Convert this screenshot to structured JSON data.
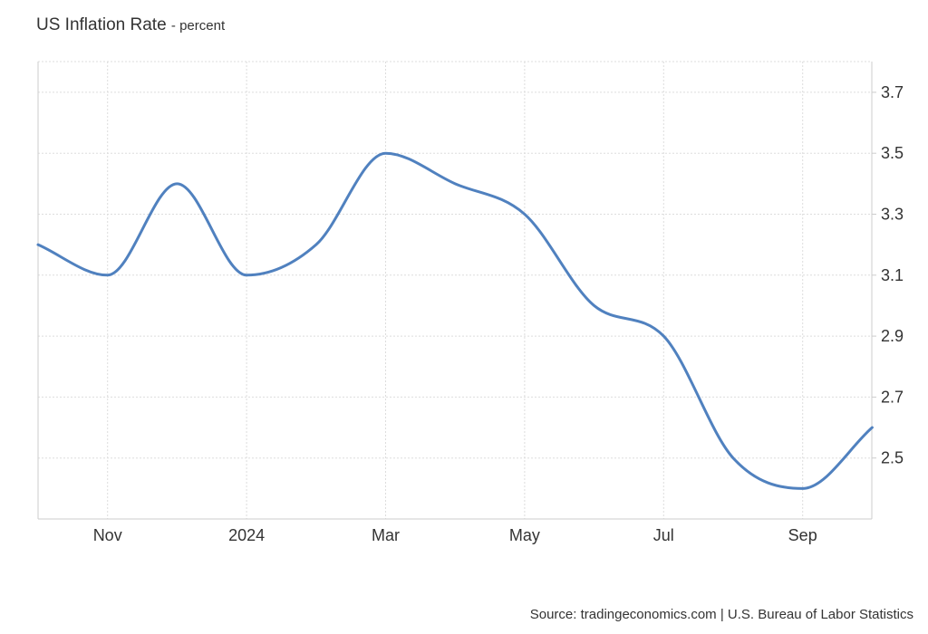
{
  "header": {
    "title": "US Inflation Rate",
    "subtitle": "- percent"
  },
  "source": "Source: tradingeconomics.com | U.S. Bureau of Labor Statistics",
  "chart_data": {
    "type": "line",
    "title": "US Inflation Rate",
    "subtitle": "percent",
    "xlabel": "",
    "ylabel": "",
    "x": [
      "2023-10",
      "2023-11",
      "2023-12",
      "2024-01",
      "2024-02",
      "2024-03",
      "2024-04",
      "2024-05",
      "2024-06",
      "2024-07",
      "2024-08",
      "2024-09",
      "2024-10"
    ],
    "series": [
      {
        "values": [
          3.2,
          3.1,
          3.4,
          3.1,
          3.2,
          3.5,
          3.4,
          3.3,
          3.0,
          2.9,
          2.5,
          2.4,
          2.6
        ],
        "color": "#5081bf"
      }
    ],
    "x_ticks": [
      {
        "label": "Nov",
        "x": "2023-11"
      },
      {
        "label": "2024",
        "x": "2024-01"
      },
      {
        "label": "Mar",
        "x": "2024-03"
      },
      {
        "label": "May",
        "x": "2024-05"
      },
      {
        "label": "Jul",
        "x": "2024-07"
      },
      {
        "label": "Sep",
        "x": "2024-09"
      }
    ],
    "y_ticks": [
      {
        "label": "2.5",
        "value": 2.5
      },
      {
        "label": "2.7",
        "value": 2.7
      },
      {
        "label": "2.9",
        "value": 2.9
      },
      {
        "label": "3.1",
        "value": 3.1
      },
      {
        "label": "3.3",
        "value": 3.3
      },
      {
        "label": "3.5",
        "value": 3.5
      },
      {
        "label": "3.7",
        "value": 3.7
      }
    ],
    "ylim": [
      2.3,
      3.8
    ],
    "y_axis_side": "right",
    "grid": true,
    "legend": "none",
    "colors": {
      "line": "#5081bf",
      "grid": "#dddddd",
      "axis": "#cccccc",
      "text": "#333333"
    }
  }
}
